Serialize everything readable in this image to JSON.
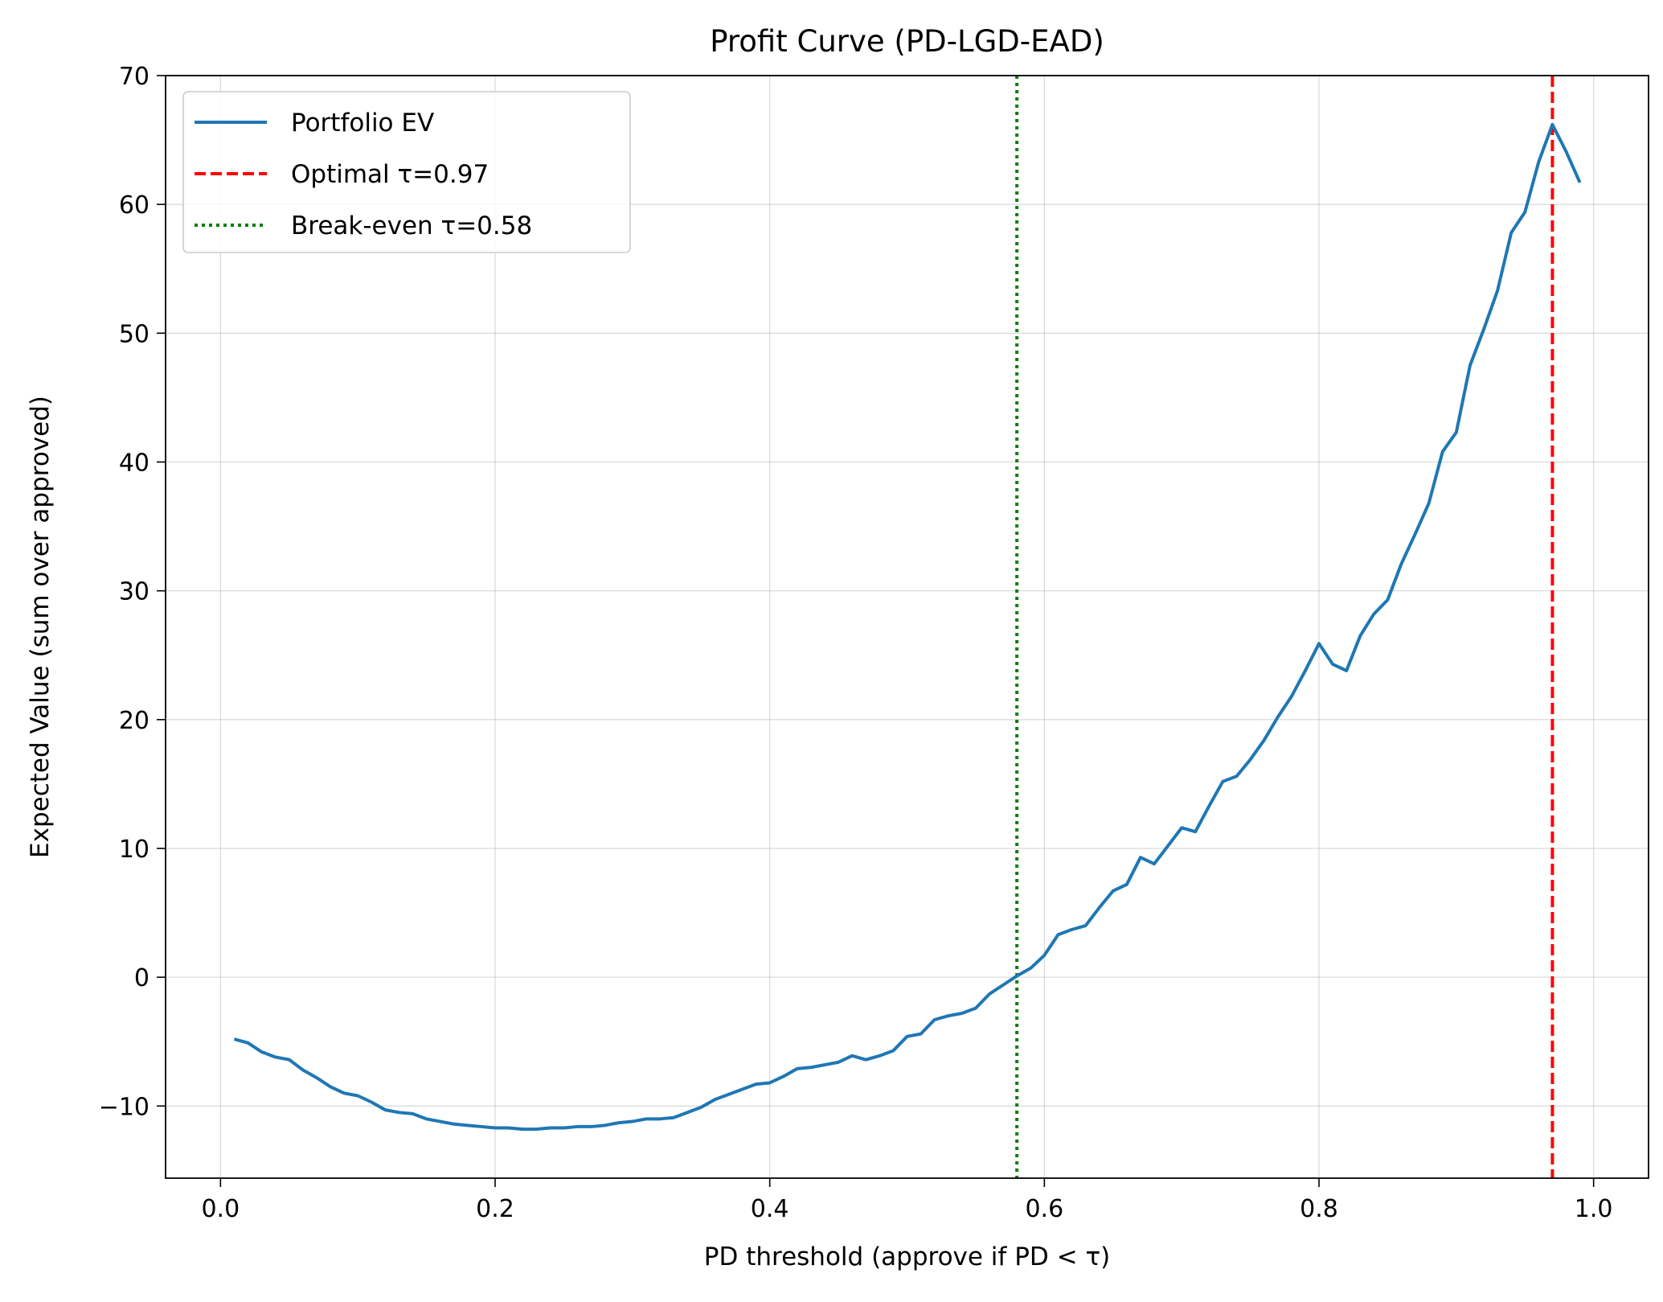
{
  "chart_data": {
    "type": "line",
    "title": "Profit Curve (PD-LGD-EAD)",
    "xlabel": "PD threshold (approve if PD < τ)",
    "ylabel": "Expected Value (sum over approved)",
    "xlim": [
      -0.04,
      1.04
    ],
    "ylim": [
      -15.6,
      70
    ],
    "x_ticks": [
      0.0,
      0.2,
      0.4,
      0.6,
      0.8,
      1.0
    ],
    "x_tick_labels": [
      "0.0",
      "0.2",
      "0.4",
      "0.6",
      "0.8",
      "1.0"
    ],
    "y_ticks": [
      -10,
      0,
      10,
      20,
      30,
      40,
      50,
      60,
      70
    ],
    "y_tick_labels": [
      "−10",
      "0",
      "10",
      "20",
      "30",
      "40",
      "50",
      "60",
      "70"
    ],
    "grid": true,
    "legend_position": "top-left",
    "series": [
      {
        "name": "Portfolio EV",
        "color": "#1f77b4",
        "style": "solid",
        "x": [
          0.01,
          0.02,
          0.03,
          0.04,
          0.05,
          0.06,
          0.07,
          0.08,
          0.09,
          0.1,
          0.11,
          0.12,
          0.13,
          0.14,
          0.15,
          0.16,
          0.17,
          0.18,
          0.19,
          0.2,
          0.21,
          0.22,
          0.23,
          0.24,
          0.25,
          0.26,
          0.27,
          0.28,
          0.29,
          0.3,
          0.31,
          0.32,
          0.33,
          0.34,
          0.35,
          0.36,
          0.37,
          0.38,
          0.39,
          0.4,
          0.41,
          0.42,
          0.43,
          0.44,
          0.45,
          0.46,
          0.47,
          0.48,
          0.49,
          0.5,
          0.51,
          0.52,
          0.53,
          0.54,
          0.55,
          0.56,
          0.57,
          0.58,
          0.59,
          0.6,
          0.61,
          0.62,
          0.63,
          0.64,
          0.65,
          0.66,
          0.67,
          0.68,
          0.69,
          0.7,
          0.71,
          0.72,
          0.73,
          0.74,
          0.75,
          0.76,
          0.77,
          0.78,
          0.79,
          0.8,
          0.81,
          0.82,
          0.83,
          0.84,
          0.85,
          0.86,
          0.87,
          0.88,
          0.89,
          0.9,
          0.91,
          0.92,
          0.93,
          0.94,
          0.95,
          0.96,
          0.97,
          0.98,
          0.99
        ],
        "y": [
          -4.8,
          -5.1,
          -5.8,
          -6.2,
          -6.4,
          -7.2,
          -7.8,
          -8.5,
          -9.0,
          -9.2,
          -9.7,
          -10.3,
          -10.5,
          -10.6,
          -11.0,
          -11.2,
          -11.4,
          -11.5,
          -11.6,
          -11.7,
          -11.7,
          -11.8,
          -11.8,
          -11.7,
          -11.7,
          -11.6,
          -11.6,
          -11.5,
          -11.3,
          -11.2,
          -11.0,
          -11.0,
          -10.9,
          -10.5,
          -10.1,
          -9.5,
          -9.1,
          -8.7,
          -8.3,
          -8.2,
          -7.7,
          -7.1,
          -7.0,
          -6.8,
          -6.6,
          -6.1,
          -6.4,
          -6.1,
          -5.7,
          -4.6,
          -4.4,
          -3.3,
          -3.0,
          -2.8,
          -2.4,
          -1.3,
          -0.6,
          0.1,
          0.7,
          1.7,
          3.3,
          3.7,
          4.0,
          5.4,
          6.7,
          7.2,
          9.3,
          8.8,
          10.2,
          11.6,
          11.3,
          13.3,
          15.2,
          15.6,
          16.9,
          18.4,
          20.2,
          21.8,
          23.8,
          25.9,
          24.3,
          23.8,
          26.5,
          28.2,
          29.3,
          32.1,
          34.4,
          36.8,
          40.8,
          42.3,
          47.5,
          50.3,
          53.3,
          57.8,
          59.4,
          63.3,
          66.2,
          64.1,
          61.7
        ]
      },
      {
        "name": "Optimal τ=0.97",
        "color": "#ff0000",
        "style": "dashed",
        "vline_x": 0.97
      },
      {
        "name": "Break-even τ=0.58",
        "color": "#008000",
        "style": "dotted",
        "vline_x": 0.58
      }
    ]
  }
}
